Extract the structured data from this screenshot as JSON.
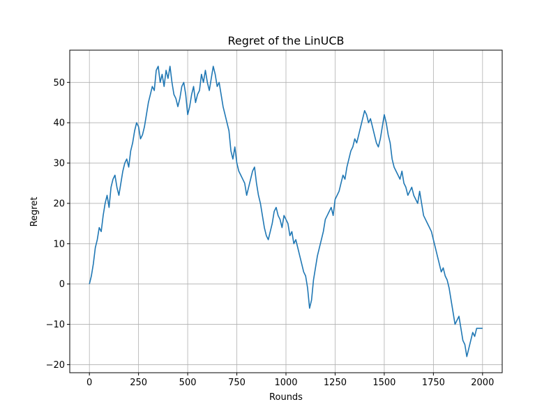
{
  "chart_data": {
    "type": "line",
    "title": "Regret of the LinUCB",
    "xlabel": "Rounds",
    "ylabel": "Regret",
    "xlim": [
      -100,
      2100
    ],
    "ylim": [
      -22,
      58
    ],
    "xticks": [
      0,
      250,
      500,
      750,
      1000,
      1250,
      1500,
      1750,
      2000
    ],
    "xtick_labels": [
      "0",
      "250",
      "500",
      "750",
      "1000",
      "1250",
      "1500",
      "1750",
      "2000"
    ],
    "yticks": [
      -20,
      -10,
      0,
      10,
      20,
      30,
      40,
      50
    ],
    "ytick_labels": [
      "−20",
      "−10",
      "0",
      "10",
      "20",
      "30",
      "40",
      "50"
    ],
    "grid": true,
    "series": [
      {
        "color": "#1f77b4",
        "x": [
          0,
          10,
          20,
          30,
          40,
          50,
          60,
          70,
          80,
          90,
          100,
          110,
          120,
          130,
          140,
          150,
          160,
          170,
          180,
          190,
          200,
          210,
          220,
          230,
          240,
          250,
          260,
          270,
          280,
          290,
          300,
          310,
          320,
          330,
          340,
          350,
          360,
          370,
          380,
          390,
          400,
          410,
          420,
          430,
          440,
          450,
          460,
          470,
          480,
          490,
          500,
          510,
          520,
          530,
          540,
          550,
          560,
          570,
          580,
          590,
          600,
          610,
          620,
          630,
          640,
          650,
          660,
          670,
          680,
          690,
          700,
          710,
          720,
          730,
          740,
          750,
          760,
          770,
          780,
          790,
          800,
          810,
          820,
          830,
          840,
          850,
          860,
          870,
          880,
          890,
          900,
          910,
          920,
          930,
          940,
          950,
          960,
          970,
          980,
          990,
          1000,
          1010,
          1020,
          1030,
          1040,
          1050,
          1060,
          1070,
          1080,
          1090,
          1100,
          1110,
          1120,
          1130,
          1140,
          1150,
          1160,
          1170,
          1180,
          1190,
          1200,
          1210,
          1220,
          1230,
          1240,
          1250,
          1260,
          1270,
          1280,
          1290,
          1300,
          1310,
          1320,
          1330,
          1340,
          1350,
          1360,
          1370,
          1380,
          1390,
          1400,
          1410,
          1420,
          1430,
          1440,
          1450,
          1460,
          1470,
          1480,
          1490,
          1500,
          1510,
          1520,
          1530,
          1540,
          1550,
          1560,
          1570,
          1580,
          1590,
          1600,
          1610,
          1620,
          1630,
          1640,
          1650,
          1660,
          1670,
          1680,
          1690,
          1700,
          1710,
          1720,
          1730,
          1740,
          1750,
          1760,
          1770,
          1780,
          1790,
          1800,
          1810,
          1820,
          1830,
          1840,
          1850,
          1860,
          1870,
          1880,
          1890,
          1900,
          1910,
          1920,
          1930,
          1940,
          1950,
          1960,
          1970,
          1980,
          1990,
          2000
        ],
        "y": [
          0,
          2,
          5,
          9,
          11,
          14,
          13,
          17,
          20,
          22,
          19,
          24,
          26,
          27,
          24,
          22,
          25,
          28,
          30,
          31,
          29,
          33,
          35,
          38,
          40,
          39,
          36,
          37,
          39,
          42,
          45,
          47,
          49,
          48,
          53,
          54,
          50,
          52,
          49,
          53,
          51,
          54,
          50,
          47,
          46,
          44,
          46,
          49,
          50,
          47,
          42,
          44,
          47,
          49,
          45,
          47,
          48,
          52,
          50,
          53,
          50,
          48,
          51,
          54,
          52,
          49,
          50,
          47,
          44,
          42,
          40,
          38,
          33,
          31,
          34,
          30,
          28,
          27,
          26,
          25,
          22,
          24,
          26,
          28,
          29,
          25,
          22,
          20,
          17,
          14,
          12,
          11,
          13,
          15,
          18,
          19,
          17,
          16,
          14,
          17,
          16,
          15,
          12,
          13,
          10,
          11,
          9,
          7,
          5,
          3,
          2,
          -1,
          -6,
          -4,
          1,
          4,
          7,
          9,
          11,
          13,
          16,
          17,
          18,
          19,
          17,
          21,
          22,
          23,
          25,
          27,
          26,
          29,
          31,
          33,
          34,
          36,
          35,
          37,
          39,
          41,
          43,
          42,
          40,
          41,
          39,
          37,
          35,
          34,
          36,
          39,
          42,
          40,
          37,
          35,
          31,
          29,
          28,
          27,
          26,
          28,
          25,
          24,
          22,
          23,
          24,
          22,
          21,
          20,
          23,
          20,
          17,
          16,
          15,
          14,
          13,
          11,
          9,
          7,
          5,
          3,
          4,
          2,
          1,
          -1,
          -4,
          -7,
          -10,
          -9,
          -8,
          -11,
          -14,
          -15,
          -18,
          -16,
          -14,
          -12,
          -13,
          -11,
          -11,
          -11,
          -11
        ]
      }
    ]
  }
}
